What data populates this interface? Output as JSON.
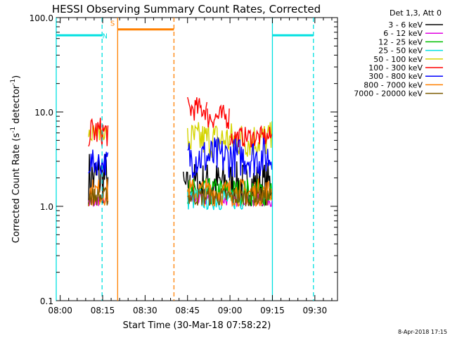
{
  "chart_data": {
    "type": "line",
    "title": "HESSI Observing Summary Count Rates, Corrected",
    "xlabel": "Start Time (30-Mar-18 07:58:22)",
    "ylabel_main": "Corrected Count Rate (s",
    "ylabel_sup1": "-1",
    "ylabel_mid": " detector",
    "ylabel_sup2": "-1",
    "ylabel_end": ")",
    "y_scale": "log",
    "ylim": [
      0.1,
      100
    ],
    "xlim_minutes": [
      -1.4,
      98
    ],
    "x_ticks": [
      {
        "t": 0,
        "label": "08:00"
      },
      {
        "t": 15,
        "label": "08:15"
      },
      {
        "t": 30,
        "label": "08:30"
      },
      {
        "t": 45,
        "label": "08:45"
      },
      {
        "t": 60,
        "label": "09:00"
      },
      {
        "t": 75,
        "label": "09:15"
      },
      {
        "t": 90,
        "label": "09:30"
      }
    ],
    "y_ticks": [
      {
        "v": 0.1,
        "label": "0.1"
      },
      {
        "v": 1,
        "label": "1.0"
      },
      {
        "v": 10,
        "label": "10.0"
      },
      {
        "v": 100,
        "label": "100.0"
      }
    ],
    "legend_position": "top-right",
    "legend_header": "Det 1,3, Att 0",
    "series": [
      {
        "name": "3 - 6 keV",
        "color": "#000000",
        "segments": [
          [
            10,
            17,
            1.0,
            4.0
          ],
          [
            43.5,
            46,
            1.0,
            2.5
          ],
          [
            46,
            75,
            1.0,
            3.0
          ]
        ]
      },
      {
        "name": "6 - 12 keV",
        "color": "#e000e0",
        "segments": [
          [
            10,
            17,
            1.0,
            1.3
          ],
          [
            46,
            75,
            1.0,
            1.4
          ]
        ]
      },
      {
        "name": "12 - 25 keV",
        "color": "#00c000",
        "segments": [
          [
            45,
            75,
            1.0,
            2.0
          ]
        ]
      },
      {
        "name": "25 - 50 keV",
        "color": "#00e0e0",
        "segments": [
          [
            45,
            65,
            0.9,
            1.6
          ]
        ]
      },
      {
        "name": "50 - 100 keV",
        "color": "#d4d400",
        "segments": [
          [
            10,
            17,
            5.0,
            7.5
          ],
          [
            45,
            75,
            3.2,
            8.0
          ]
        ]
      },
      {
        "name": "100 - 300 keV",
        "color": "#ff0000",
        "segments": [
          [
            10,
            17,
            4.2,
            9.0
          ],
          [
            45,
            52,
            8.0,
            14.5
          ],
          [
            52,
            60,
            6.5,
            12.0
          ],
          [
            60,
            75,
            4.2,
            7.0
          ]
        ]
      },
      {
        "name": "300 - 800 keV",
        "color": "#0000ff",
        "segments": [
          [
            10,
            17,
            2.1,
            4.0
          ],
          [
            45,
            75,
            2.0,
            5.5
          ]
        ]
      },
      {
        "name": "800 - 7000 keV",
        "color": "#ff8000",
        "segments": [
          [
            10,
            17,
            1.0,
            2.0
          ],
          [
            45,
            75,
            1.0,
            2.0
          ]
        ]
      },
      {
        "name": "7000 - 20000 keV",
        "color": "#7a5a00",
        "segments": [
          [
            10,
            17,
            1.0,
            1.6
          ],
          [
            45,
            75,
            1.0,
            1.6
          ]
        ]
      }
    ],
    "markers": {
      "night_label": "N",
      "saa_label": "S",
      "night_color": "#00e0e0",
      "saa_color": "#ff8000",
      "solid_lines": [
        {
          "t": -1.4,
          "color": "#00e0e0"
        },
        {
          "t": 20.3,
          "color": "#ff8000"
        },
        {
          "t": 75,
          "color": "#00e0e0"
        }
      ],
      "dashed_lines": [
        {
          "t": 14.8,
          "color": "#00e0e0"
        },
        {
          "t": 40.2,
          "color": "#ff8000"
        },
        {
          "t": 89.5,
          "color": "#00e0e0"
        }
      ],
      "bars": [
        {
          "t0": -1.4,
          "t1": 14.8,
          "v": 65,
          "color": "#00e0e0"
        },
        {
          "t0": 75,
          "t1": 89.5,
          "v": 65,
          "color": "#00e0e0"
        },
        {
          "t0": 20.3,
          "t1": 40.2,
          "v": 75,
          "color": "#ff8000"
        }
      ]
    },
    "grid": false
  },
  "footer_date": "8-Apr-2018 17:15"
}
